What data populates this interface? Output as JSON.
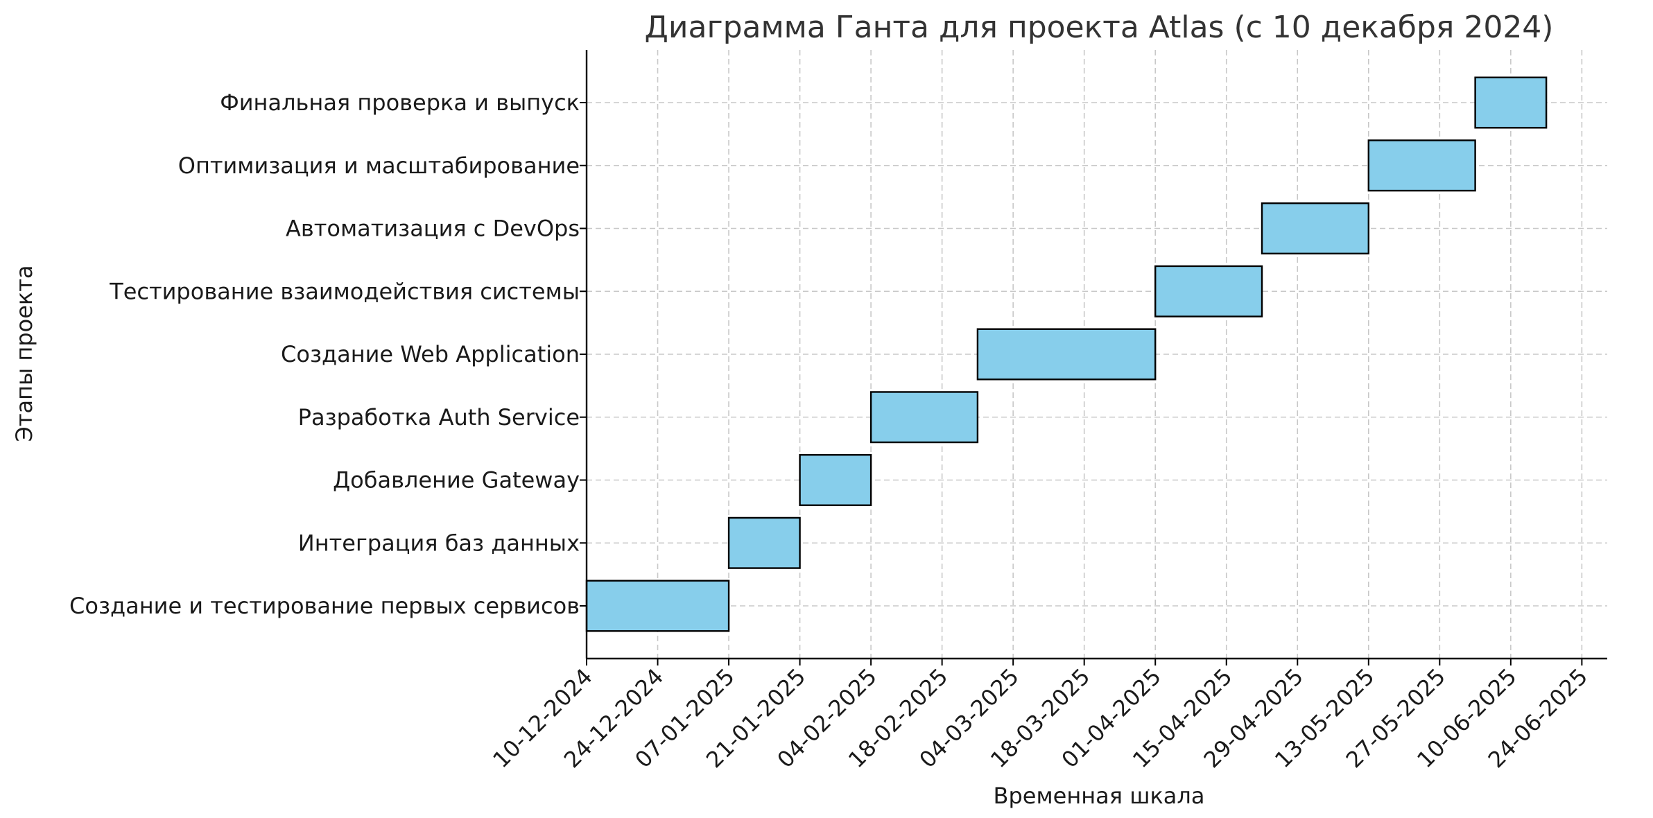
{
  "chart_data": {
    "type": "gantt",
    "title": "Диаграмма Ганта для проекта Atlas (с 10 декабря 2024)",
    "xlabel": "Временная шкала",
    "ylabel": "Этапы проекта",
    "xlim": [
      "2024-12-10",
      "2025-06-29"
    ],
    "x_ticks": [
      {
        "date": "2024-12-10",
        "label": "10-12-2024"
      },
      {
        "date": "2024-12-24",
        "label": "24-12-2024"
      },
      {
        "date": "2025-01-07",
        "label": "07-01-2025"
      },
      {
        "date": "2025-01-21",
        "label": "21-01-2025"
      },
      {
        "date": "2025-02-04",
        "label": "04-02-2025"
      },
      {
        "date": "2025-02-18",
        "label": "18-02-2025"
      },
      {
        "date": "2025-03-04",
        "label": "04-03-2025"
      },
      {
        "date": "2025-03-18",
        "label": "18-03-2025"
      },
      {
        "date": "2025-04-01",
        "label": "01-04-2025"
      },
      {
        "date": "2025-04-15",
        "label": "15-04-2025"
      },
      {
        "date": "2025-04-29",
        "label": "29-04-2025"
      },
      {
        "date": "2025-05-13",
        "label": "13-05-2025"
      },
      {
        "date": "2025-05-27",
        "label": "27-05-2025"
      },
      {
        "date": "2025-06-10",
        "label": "10-06-2025"
      },
      {
        "date": "2025-06-24",
        "label": "24-06-2025"
      }
    ],
    "tasks": [
      {
        "name": "Создание и тестирование первых сервисов",
        "start": "2024-12-10",
        "end": "2025-01-07"
      },
      {
        "name": "Интеграция баз данных",
        "start": "2025-01-07",
        "end": "2025-01-21"
      },
      {
        "name": "Добавление Gateway",
        "start": "2025-01-21",
        "end": "2025-02-04"
      },
      {
        "name": "Разработка Auth Service",
        "start": "2025-02-04",
        "end": "2025-02-25"
      },
      {
        "name": "Создание Web Application",
        "start": "2025-02-25",
        "end": "2025-04-01"
      },
      {
        "name": "Тестирование взаимодействия системы",
        "start": "2025-04-01",
        "end": "2025-04-22"
      },
      {
        "name": "Автоматизация с DevOps",
        "start": "2025-04-22",
        "end": "2025-05-13"
      },
      {
        "name": "Оптимизация и масштабирование",
        "start": "2025-05-13",
        "end": "2025-06-03"
      },
      {
        "name": "Финальная проверка и выпуск",
        "start": "2025-06-03",
        "end": "2025-06-17"
      }
    ],
    "grid": true,
    "legend": "none",
    "colors": {
      "bar_fill": "#87ceeb",
      "bar_edge": "#000000",
      "grid": "#c8c8c8",
      "title": "#333333"
    }
  }
}
